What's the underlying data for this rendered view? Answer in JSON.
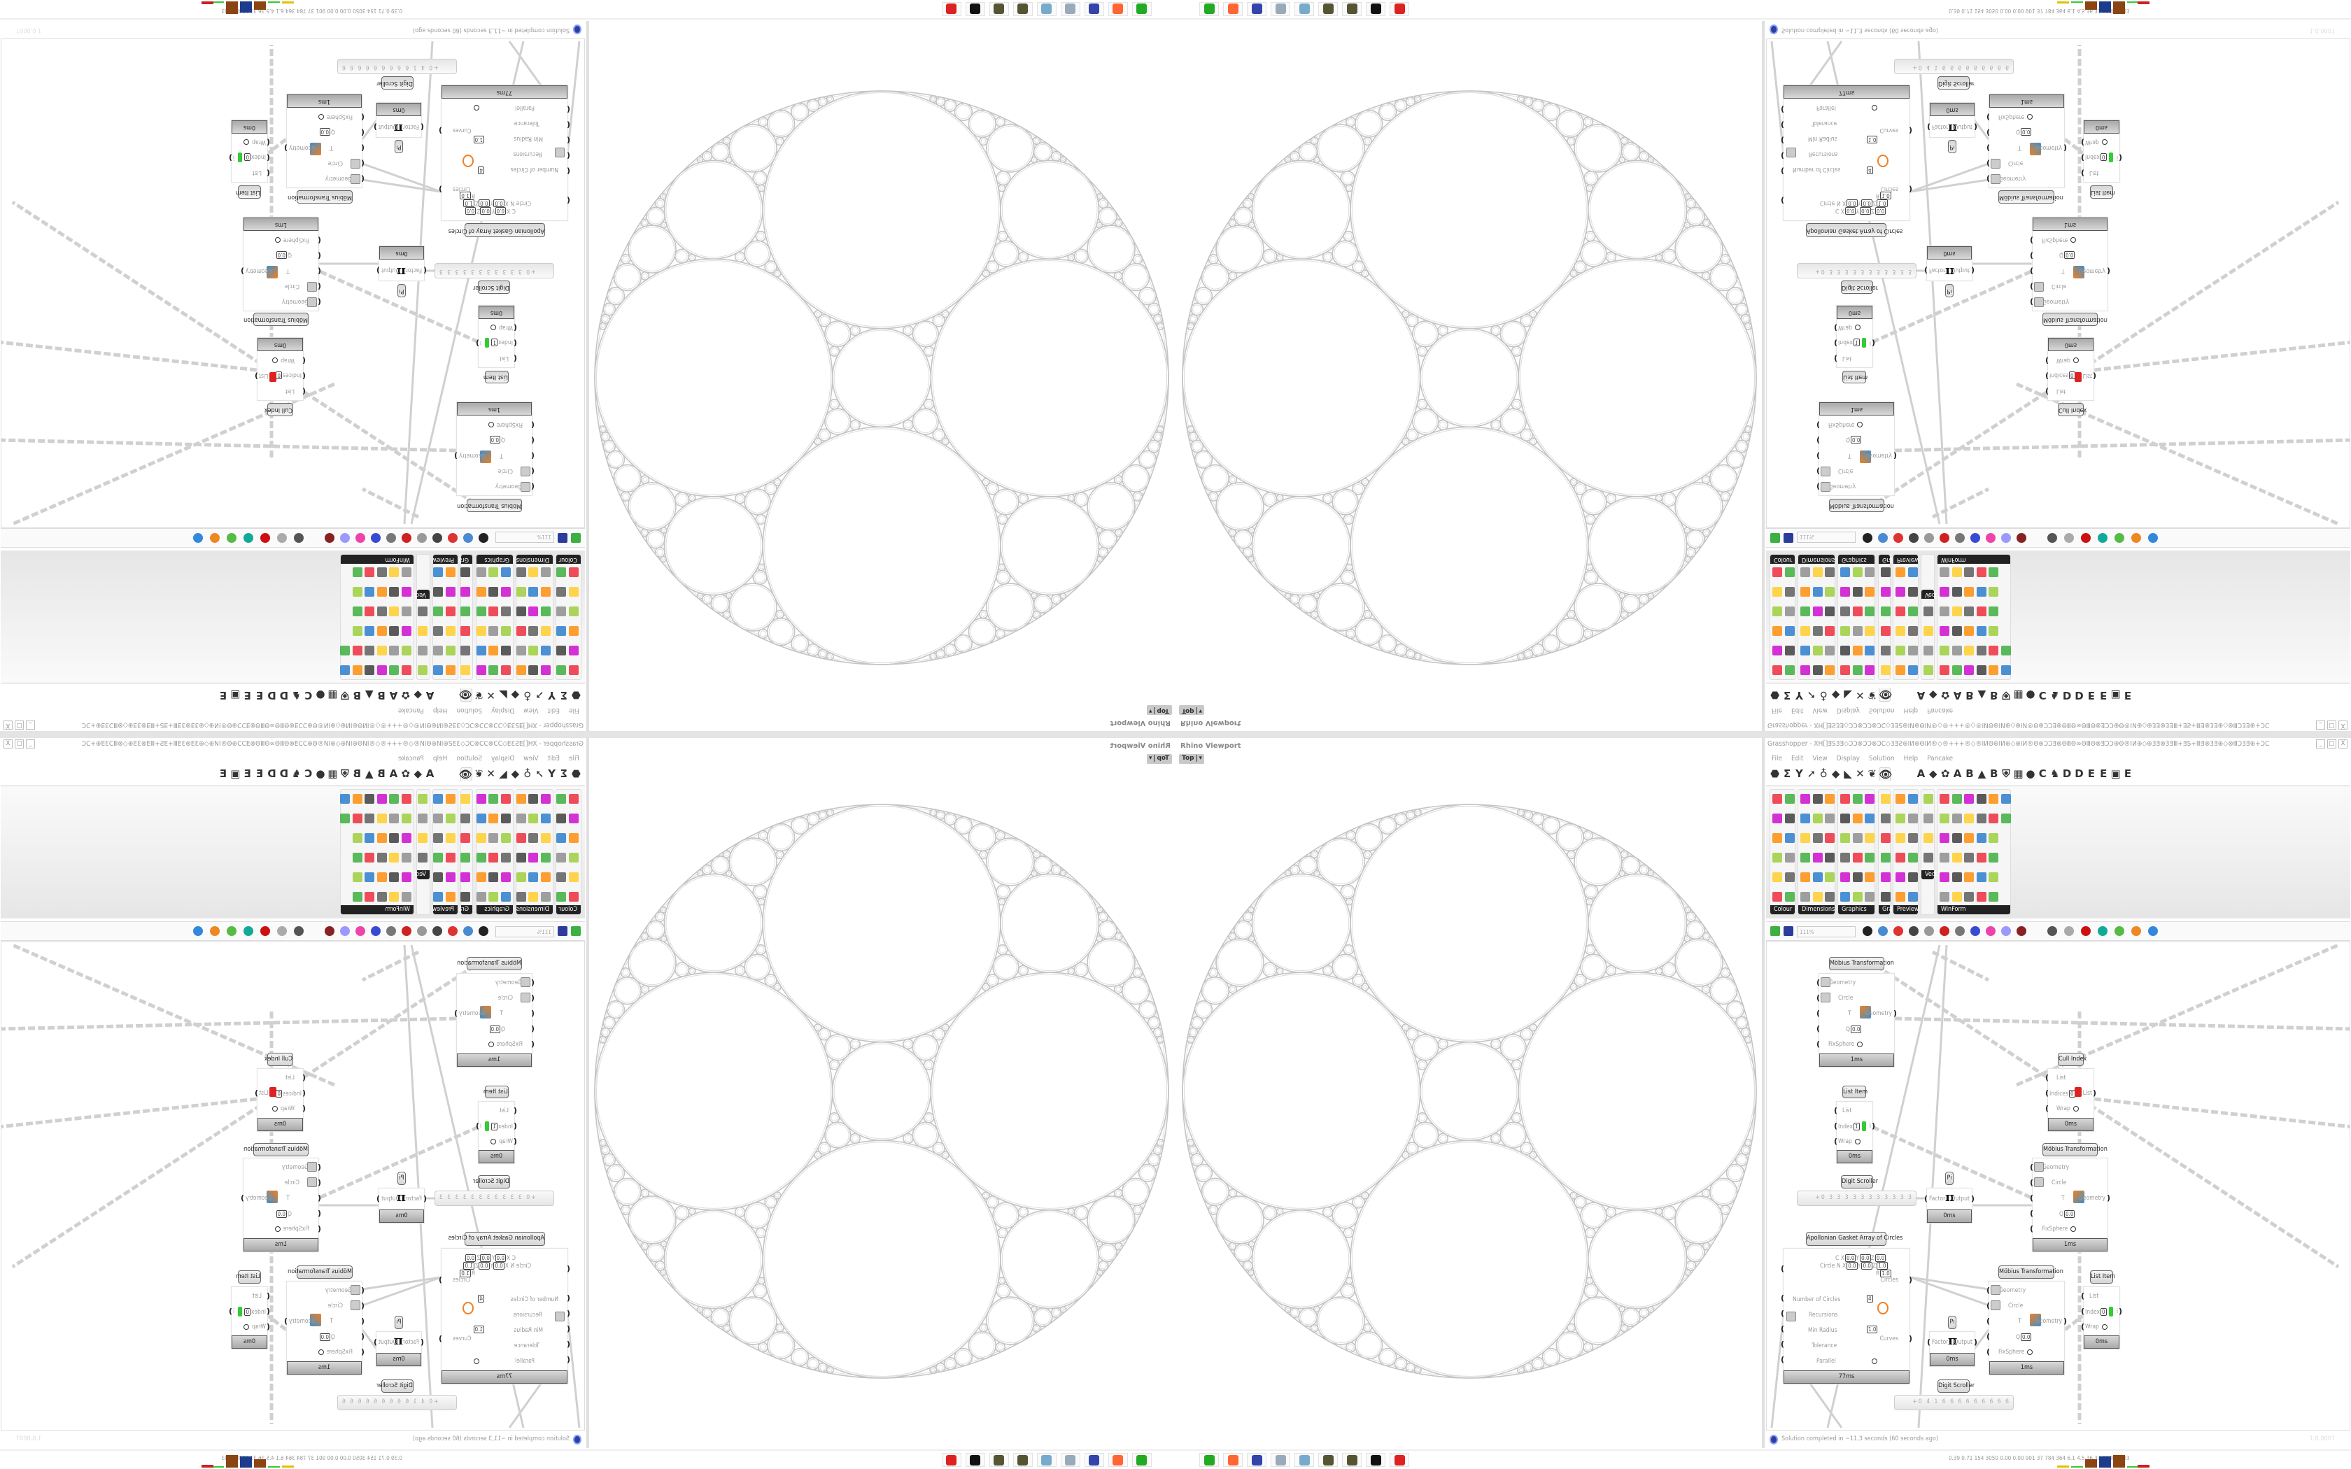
{
  "viewport": {
    "label": "Rhino Viewport",
    "view": "Top"
  },
  "grasshopper": {
    "title": "Grasshopper - XH[]ƎS3Ǝ◇ƆƆ⊗ƆƆ⊗ƆC◇3ƎƧ⊕IИ⊕ΘIИ®◇®+++®◇®IИΘ⊕IИ⊕◇⊕IИ®Θ⊕ƆƆƎ⊗ΘⅢΘ∞ΘⅢΘ⊗ƎƆƆ⊕Θ®IИ⊕◇⊕3Ǝ⊗3ƎⅢ+ƎS+ⅢƎ⊗3Ǝ⊕◇⊗ⅢƆ3Ǝ⊕+ƆC",
    "window_buttons": [
      "_",
      "□",
      "X"
    ],
    "menu": [
      "File",
      "Edit",
      "View",
      "Display",
      "Solution",
      "Help",
      "Pancake"
    ],
    "tab_icons": [
      "⬣",
      "Σ",
      "Y",
      "➚",
      "♁",
      "◆",
      "◣",
      "✕",
      "❦",
      "👁",
      "",
      "",
      "A",
      "◆",
      "✿",
      "A",
      "B",
      "▲",
      "B",
      "⛨",
      "▦",
      "●",
      "C",
      "♞",
      "D",
      "D",
      "E",
      "E",
      "▣",
      "E"
    ],
    "ribbon_groups": [
      "Colour",
      "Dimensions",
      "Graphics",
      "Grap..",
      "Preview",
      "Vect..",
      "WinForm"
    ],
    "zoom": "111%",
    "status": "Solution completed in ~11,3 seconds (60 seconds ago)",
    "version": "1.0.0007"
  },
  "nodes": {
    "mobius": {
      "title": "Möbius Transformation",
      "inputs": [
        "Geometry",
        "Circle",
        "T",
        "Q",
        "FixSphere"
      ],
      "q": "0.0",
      "output": "Geometry",
      "time": "1ms"
    },
    "list_item_1": {
      "title": "List Item",
      "inputs": [
        "List",
        "Index",
        "Wrap"
      ],
      "index": "1",
      "output": "i",
      "time": "0ms"
    },
    "list_item_2": {
      "title": "List Item",
      "inputs": [
        "List",
        "Index",
        "Wrap"
      ],
      "index": "0",
      "output": "i",
      "time": "0ms"
    },
    "cull_index": {
      "title": "Cull Index",
      "inputs": [
        "List",
        "Indices",
        "Wrap"
      ],
      "indices": "0",
      "output": "List",
      "time": "0ms"
    },
    "pi": {
      "title": "Pi",
      "input": "Factor",
      "output": "Output",
      "time": "0ms"
    },
    "digit_scroller_1": {
      "title": "Digit Scroller",
      "value": "+0 3 3 3 3 3 3 3 3 3 3 3"
    },
    "digit_scroller_2": {
      "title": "Digit Scroller",
      "value": "+0 4 1 6 6 6 6 6 6 6 6 6"
    },
    "apollonian": {
      "title": "Apollonian Gasket Array of Circles",
      "circle_label": "Circle",
      "c": [
        "0.0",
        "0.0",
        "0.0"
      ],
      "n": [
        "0.0",
        "0.0",
        "1.0"
      ],
      "r": "1.0",
      "inputs": [
        "Number of Circles",
        "Recursions",
        "Min Radius",
        "Tolerance",
        "Parallel"
      ],
      "number_of_circles": "4",
      "min_radius": "1.0",
      "outputs": [
        "Circles",
        "Curves"
      ],
      "time": "77ms"
    }
  },
  "taskbar": {
    "apps": [
      "terminal-icon",
      "firefox-icon",
      "floppy-64-icon",
      "scroll-icon",
      "notepad-icon",
      "sphere-icon",
      "sphere-icon",
      "rhino-icon",
      "gear-red-icon"
    ],
    "stats": "0.39 0.71 154 3050 0.00 0.00 901 37 784 364 6.1 4.5 36 33 5388 7083"
  },
  "colors": {
    "wire": "#d0d0d0",
    "gasket": "#c4c4c4",
    "status_icon": "#2a3f9e"
  }
}
